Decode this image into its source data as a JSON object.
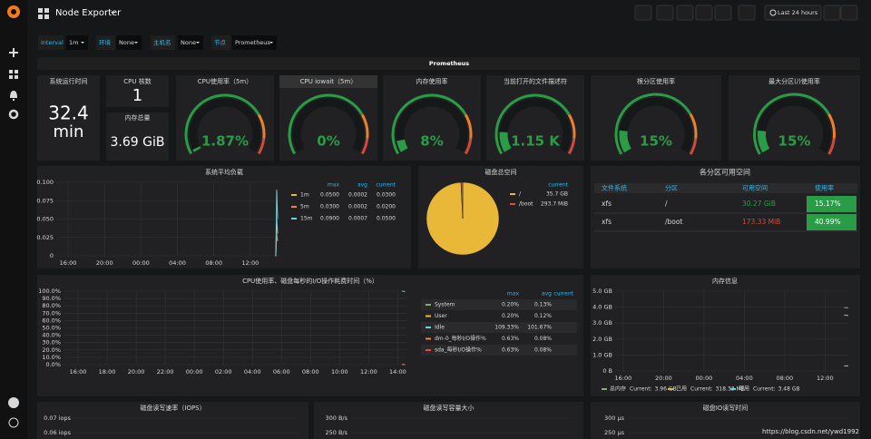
{
  "header": {
    "title": "Node Exporter",
    "time_range": "Last 24 hours"
  },
  "variables": [
    {
      "label": "interval",
      "value": "1m"
    },
    {
      "label": "环境",
      "value": "None"
    },
    {
      "label": "主机名",
      "value": "None"
    },
    {
      "label": "节点",
      "value": "Prometheus"
    }
  ],
  "row_title": "Prometheus",
  "stats": [
    {
      "title": "系统运行时间",
      "value": "32.4",
      "unit": "min"
    },
    {
      "title": "CPU 核数",
      "value": "1"
    },
    {
      "title": "内存总量",
      "value": "3.69 GiB"
    }
  ],
  "gauges": [
    {
      "title": "CPU使用率（5m）",
      "value": 1.87,
      "value_label": "1.87%",
      "range": [
        0,
        100
      ]
    },
    {
      "title": "CPU iowait（5m）",
      "value": 0,
      "value_label": "0%",
      "range": [
        0,
        100
      ]
    },
    {
      "title": "内存使用率",
      "value": 8,
      "value_label": "8%",
      "range": [
        0,
        100
      ]
    },
    {
      "title": "当前打开的文件描述符",
      "value": 1150,
      "value_label": "1.15 K",
      "range": [
        0,
        8192
      ]
    },
    {
      "title": "根分区使用率",
      "value": 15,
      "value_label": "15%",
      "range": [
        0,
        100
      ]
    },
    {
      "title": "最大分区(/)使用率",
      "value": 15,
      "value_label": "15%",
      "range": [
        0,
        100
      ]
    }
  ],
  "load_chart": {
    "type": "line",
    "title": "系统平均负载",
    "xlim": [
      14.7,
      39.2
    ],
    "ylim": [
      0,
      0.1
    ],
    "xticks": [
      {
        "value": 16,
        "label": "16:00"
      },
      {
        "value": 20,
        "label": "20:00"
      },
      {
        "value": 24,
        "label": "00:00"
      },
      {
        "value": 28,
        "label": "04:00"
      },
      {
        "value": 32,
        "label": "08:00"
      },
      {
        "value": 36,
        "label": "12:00"
      }
    ],
    "yticks": [
      0,
      0.025,
      {
        "value": 0.05,
        "label": "0.050"
      },
      0.075,
      {
        "value": 0.1,
        "label": "0.100"
      }
    ],
    "legend_headers": [
      "max",
      "avg",
      "current"
    ],
    "series": [
      {
        "name": "1m",
        "color": "#eab839",
        "max": "0.0500",
        "avg": "0.0002",
        "current": "0.0300",
        "x": [
          38.7,
          38.8,
          38.9,
          39.0
        ],
        "values": [
          0,
          0,
          0.05,
          0.03
        ]
      },
      {
        "name": "5m",
        "color": "#ef843c",
        "max": "0.0300",
        "avg": "0.0002",
        "current": "0.0200",
        "x": [
          38.7,
          38.8,
          38.9,
          39.0
        ],
        "values": [
          0,
          0,
          0.03,
          0.02
        ]
      },
      {
        "name": "15m",
        "color": "#6ed0e0",
        "max": "0.0900",
        "avg": "0.0007",
        "current": "0.0500",
        "x": [
          38.7,
          38.8,
          38.9,
          39.0
        ],
        "values": [
          0,
          0,
          0.09,
          0.05
        ]
      }
    ]
  },
  "disk_pie": {
    "type": "pie",
    "title": "磁盘总空间",
    "legend_header": "current",
    "categories": [
      "/",
      "/boot"
    ],
    "values": [
      35.7,
      0.2868
    ],
    "value_labels": [
      "35.7 GB",
      "293.7 MiB"
    ],
    "colors": [
      "#eab839",
      "#e24d42"
    ]
  },
  "partition_table": {
    "title": "各分区可用空间",
    "headers": [
      "文件系统",
      "分区",
      "可用空间",
      "使用率"
    ],
    "rows": [
      [
        "xfs",
        "/",
        "30.27 GiB",
        "15.17%"
      ],
      [
        "xfs",
        "/boot",
        "173.33 MiB",
        "40.99%"
      ]
    ]
  },
  "cpu_chart": {
    "type": "line",
    "title": "CPU使用率、磁盘每秒的I/O操作耗费时间（%）",
    "xlim": [
      15,
      38.6
    ],
    "ylim": [
      0,
      100
    ],
    "xticks": [
      {
        "value": 16,
        "label": "16:00"
      },
      {
        "value": 18,
        "label": "18:00"
      },
      {
        "value": 20,
        "label": "20:00"
      },
      {
        "value": 22,
        "label": "22:00"
      },
      {
        "value": 24,
        "label": "00:00"
      },
      {
        "value": 26,
        "label": "02:00"
      },
      {
        "value": 28,
        "label": "04:00"
      },
      {
        "value": 30,
        "label": "06:00"
      },
      {
        "value": 32,
        "label": "08:00"
      },
      {
        "value": 34,
        "label": "10:00"
      },
      {
        "value": 36,
        "label": "12:00"
      },
      {
        "value": 38,
        "label": "14:00"
      }
    ],
    "yticks": [
      {
        "value": 0,
        "label": "0.0%"
      },
      {
        "value": 10,
        "label": "10.0%"
      },
      {
        "value": 20,
        "label": "20.0%"
      },
      {
        "value": 30,
        "label": "30.0%"
      },
      {
        "value": 40,
        "label": "40.0%"
      },
      {
        "value": 50,
        "label": "50.0%"
      },
      {
        "value": 60,
        "label": "60.0%"
      },
      {
        "value": 70,
        "label": "70.0%"
      },
      {
        "value": 80,
        "label": "80.0%"
      },
      {
        "value": 90,
        "label": "90.0%"
      },
      {
        "value": 100,
        "label": "100.0%"
      }
    ],
    "legend_headers": [
      "max",
      "avg",
      "current"
    ],
    "series": [
      {
        "name": "System",
        "color": "#7eb26d",
        "max": "0.20%",
        "avg": "0.13%",
        "x": [
          38.3,
          38.5
        ],
        "values": [
          0.1,
          0.2
        ]
      },
      {
        "name": "User",
        "color": "#eab839",
        "max": "0.20%",
        "avg": "0.12%",
        "x": [
          38.3,
          38.5
        ],
        "values": [
          0.1,
          0.2
        ]
      },
      {
        "name": "Idle",
        "color": "#6ed0e0",
        "max": "109.33%",
        "avg": "101.67%",
        "x": [
          38.3,
          38.5
        ],
        "values": [
          100,
          99.6
        ]
      },
      {
        "name": "dm-0_每秒I/O操作%",
        "color": "#ef843c",
        "max": "0.63%",
        "avg": "0.08%",
        "x": [
          38.3,
          38.5
        ],
        "values": [
          0.6,
          0
        ]
      },
      {
        "name": "sda_每秒I/O操作%",
        "color": "#e24d42",
        "max": "0.63%",
        "avg": "0.08%",
        "x": [
          38.3,
          38.5
        ],
        "values": [
          0.6,
          0
        ]
      }
    ]
  },
  "memory_chart": {
    "type": "line",
    "title": "内存信息",
    "xlim": [
      15.2,
      38.4
    ],
    "ylim": [
      0,
      5
    ],
    "current_label": "Current:",
    "xticks": [
      {
        "value": 16,
        "label": "16:00"
      },
      {
        "value": 20,
        "label": "20:00"
      },
      {
        "value": 24,
        "label": "00:00"
      },
      {
        "value": 28,
        "label": "04:00"
      },
      {
        "value": 32,
        "label": "08:00"
      },
      {
        "value": 36,
        "label": "12:00"
      }
    ],
    "yticks": [
      {
        "value": 0,
        "label": "0 B"
      },
      {
        "value": 1,
        "label": "1.0 GB"
      },
      {
        "value": 2,
        "label": "2.0 GB"
      },
      {
        "value": 3,
        "label": "3.0 GB"
      },
      {
        "value": 4,
        "label": "4.0 GB"
      },
      {
        "value": 5,
        "label": "5.0 GB"
      }
    ],
    "series": [
      {
        "name": "总内存",
        "color": "#7eb26d",
        "current": "3.96 GB",
        "x": [
          37.9,
          38.3
        ],
        "values": [
          3.96,
          3.96
        ]
      },
      {
        "name": "已用",
        "color": "#eab839",
        "current": "318.33 MB",
        "x": [
          37.9,
          38.3
        ],
        "values": [
          0.31,
          0.32
        ]
      },
      {
        "name": "可用",
        "color": "#6ed0e0",
        "current": "3.48 GB",
        "x": [
          37.9,
          38.3
        ],
        "values": [
          3.5,
          3.48
        ]
      }
    ]
  },
  "bottom_panels": [
    {
      "title": "磁盘读写速率（IOPS）",
      "yticks": [
        {
          "value": 0.07,
          "label": "0.07 iops"
        },
        {
          "value": 0.06,
          "label": "0.06 iops"
        }
      ]
    },
    {
      "title": "磁盘读写容量大小",
      "yticks": [
        {
          "value": 300,
          "label": "300 B/s"
        },
        {
          "value": 250,
          "label": "250 B/s"
        }
      ]
    },
    {
      "title": "磁盘IO读写时间",
      "yticks": [
        {
          "value": 300,
          "label": "300 µs"
        },
        {
          "value": 250,
          "label": "250 µs"
        }
      ]
    }
  ],
  "watermark": "https://blog.csdn.net/ywd1992"
}
